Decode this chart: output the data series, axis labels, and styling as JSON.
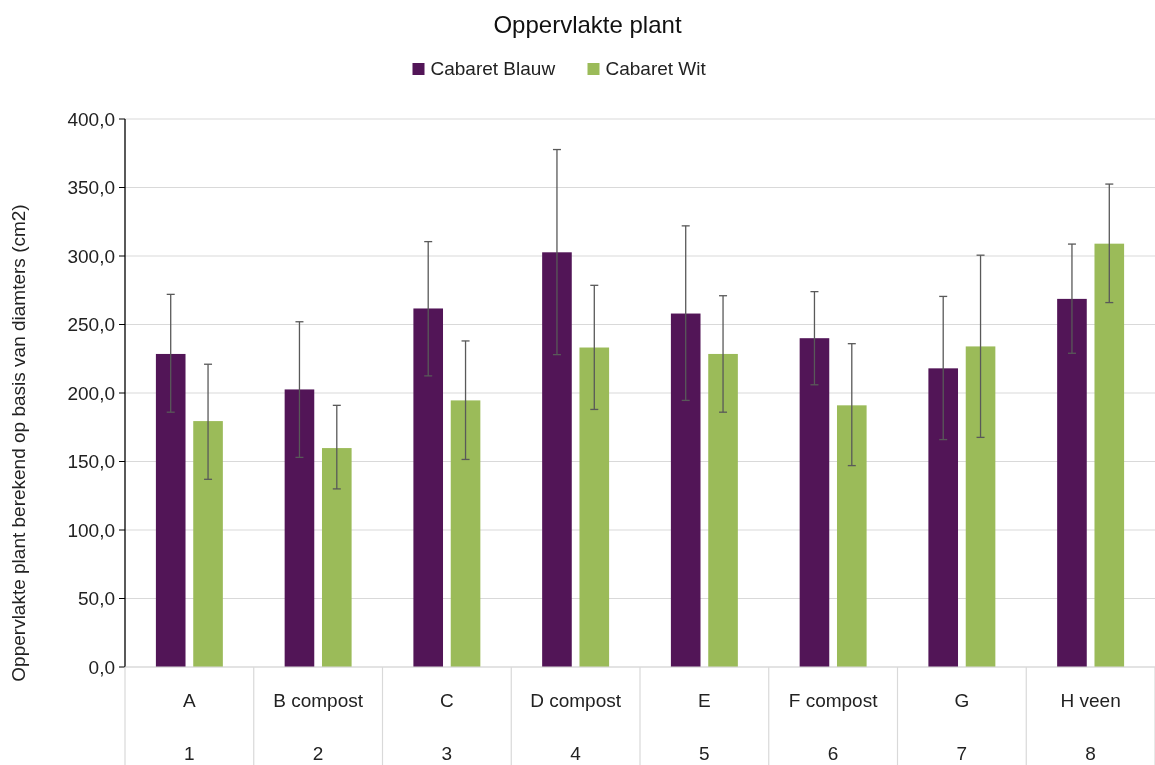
{
  "chart_data": {
    "type": "bar",
    "title": "Oppervlakte plant",
    "ylabel": "Oppervlakte plant berekend op basis van diamters (cm2)",
    "categories": [
      "A\n1",
      "B compost\n2",
      "C\n3",
      "D compost\n4",
      "E\n5",
      "F compost\n6",
      "G\n7",
      "H veen\n8"
    ],
    "series": [
      {
        "name": "Cabaret Blauw",
        "color": "#521557",
        "values": [
          228.5,
          202.6,
          261.7,
          302.7,
          258,
          240,
          218,
          268.7
        ],
        "errors": [
          [
            186,
            272
          ],
          [
            153,
            252
          ],
          [
            212.5,
            310.5
          ],
          [
            228,
            377.7
          ],
          [
            194.6,
            322
          ],
          [
            206,
            274
          ],
          [
            166,
            270.5
          ],
          [
            229,
            308.7
          ]
        ]
      },
      {
        "name": "Cabaret Wit",
        "color": "#9bbb59",
        "values": [
          179.5,
          159.8,
          194.6,
          233.2,
          228.5,
          191,
          234,
          309
        ],
        "errors": [
          [
            137,
            221
          ],
          [
            130,
            191
          ],
          [
            151.5,
            238
          ],
          [
            188,
            278.6
          ],
          [
            186,
            271
          ],
          [
            147,
            236
          ],
          [
            167.6,
            300.6
          ],
          [
            266,
            352.5
          ]
        ]
      }
    ],
    "ylim": [
      0,
      400
    ],
    "yticks": [
      {
        "value": 0,
        "label": "0,0"
      },
      {
        "value": 50,
        "label": "50,0"
      },
      {
        "value": 100,
        "label": "100,0"
      },
      {
        "value": 150,
        "label": "150,0"
      },
      {
        "value": 200,
        "label": "200,0"
      },
      {
        "value": 250,
        "label": "250,0"
      },
      {
        "value": 300,
        "label": "300,0"
      },
      {
        "value": 350,
        "label": "350,0"
      },
      {
        "value": 400,
        "label": "400,0"
      }
    ],
    "grid": "y",
    "legend": "top"
  }
}
